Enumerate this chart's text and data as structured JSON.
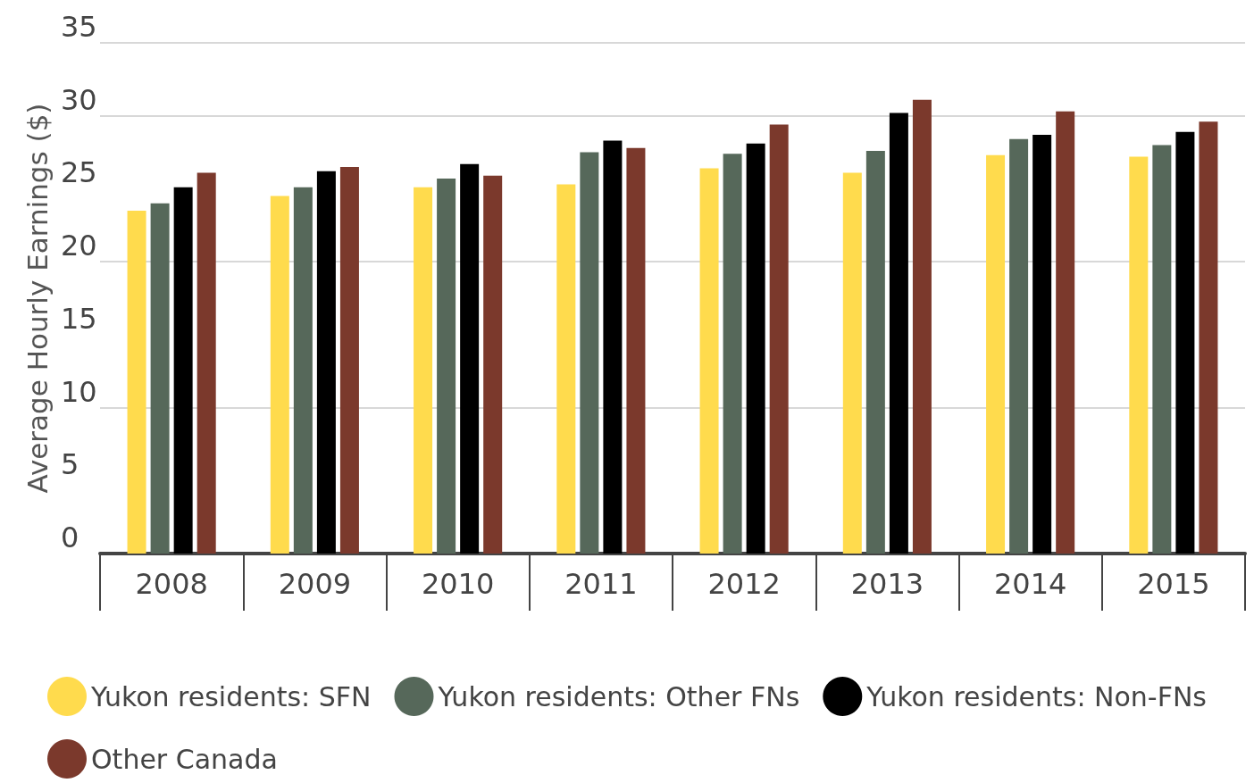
{
  "chart_data": {
    "type": "bar",
    "ylabel": "Average Hourly Earnings ($)",
    "categories": [
      "2008",
      "2009",
      "2010",
      "2011",
      "2012",
      "2013",
      "2014",
      "2015"
    ],
    "series": [
      {
        "name": "Yukon residents: SFN",
        "color": "#ffdb4d",
        "values": [
          23.5,
          24.5,
          25.1,
          25.3,
          26.4,
          26.1,
          27.3,
          27.2
        ]
      },
      {
        "name": "Yukon residents: Other FNs",
        "color": "#56685a",
        "values": [
          24.0,
          25.1,
          25.7,
          27.5,
          27.4,
          27.6,
          28.4,
          28.0
        ]
      },
      {
        "name": "Yukon residents: Non-FNs",
        "color": "#000000",
        "values": [
          25.1,
          26.2,
          26.7,
          28.3,
          28.1,
          30.2,
          28.7,
          28.9
        ]
      },
      {
        "name": "Other Canada",
        "color": "#7b392c",
        "values": [
          26.1,
          26.5,
          25.9,
          27.8,
          29.4,
          31.1,
          30.3,
          29.6
        ]
      }
    ],
    "ylim": [
      0,
      35
    ],
    "yticks": [
      0,
      5,
      10,
      15,
      20,
      25,
      30,
      35
    ],
    "grid": "y",
    "legend": "bottom"
  }
}
